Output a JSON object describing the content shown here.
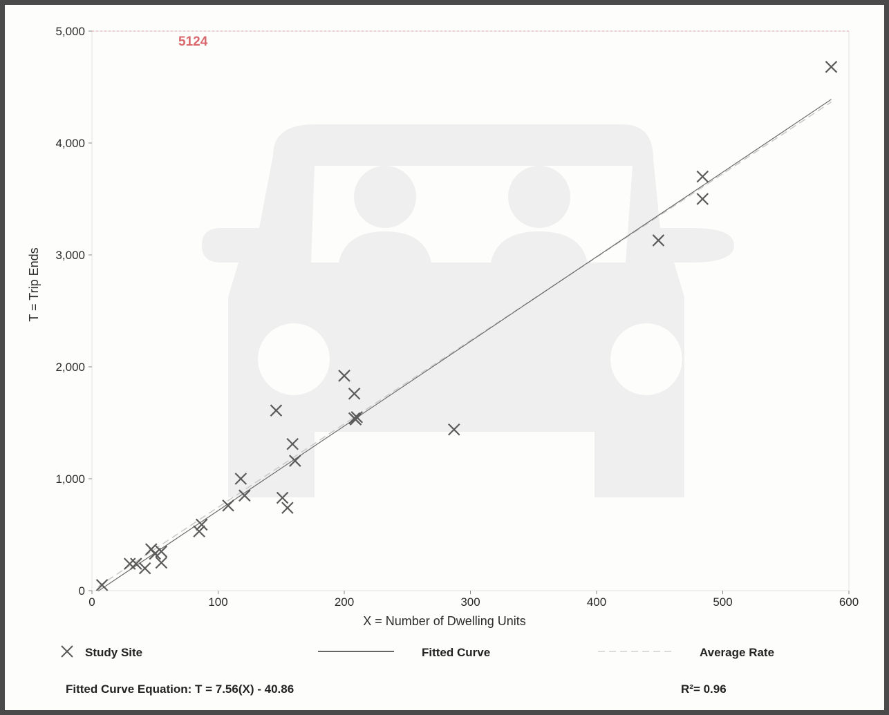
{
  "chart_data": {
    "type": "scatter",
    "xlabel": "X = Number of Dwelling Units",
    "ylabel": "T = Trip Ends",
    "xlim": [
      0,
      600
    ],
    "ylim": [
      0,
      5000
    ],
    "x_ticks": [
      0,
      100,
      200,
      300,
      400,
      500,
      600
    ],
    "y_ticks": [
      0,
      1000,
      2000,
      3000,
      4000,
      5000
    ],
    "x_tick_labels": [
      "0",
      "100",
      "200",
      "300",
      "400",
      "500",
      "600"
    ],
    "y_tick_labels": [
      "0",
      "1,000",
      "2,000",
      "3,000",
      "4,000",
      "5,000"
    ],
    "max_line": {
      "value": 5124,
      "label": "5124",
      "color": "#d9686e"
    },
    "series": [
      {
        "name": "Study Site",
        "marker": "x",
        "color": "#5a5a5a",
        "points": [
          [
            8,
            50
          ],
          [
            30,
            240
          ],
          [
            35,
            240
          ],
          [
            42,
            200
          ],
          [
            47,
            370
          ],
          [
            50,
            330
          ],
          [
            55,
            350
          ],
          [
            55,
            250
          ],
          [
            85,
            530
          ],
          [
            87,
            590
          ],
          [
            108,
            760
          ],
          [
            118,
            1000
          ],
          [
            121,
            850
          ],
          [
            146,
            1610
          ],
          [
            151,
            830
          ],
          [
            155,
            740
          ],
          [
            159,
            1310
          ],
          [
            161,
            1160
          ],
          [
            200,
            1920
          ],
          [
            208,
            1760
          ],
          [
            208,
            1540
          ],
          [
            209,
            1530
          ],
          [
            210,
            1550
          ],
          [
            287,
            1440
          ],
          [
            449,
            3130
          ],
          [
            484,
            3700
          ],
          [
            484,
            3500
          ],
          [
            586,
            4680
          ]
        ]
      },
      {
        "name": "Fitted Curve",
        "type": "line",
        "slope": 7.56,
        "intercept": -40.86,
        "x_range": [
          5,
          586
        ],
        "color": "#6a6a6a"
      },
      {
        "name": "Average Rate",
        "type": "line",
        "slope": 7.45,
        "intercept": 0,
        "x_range": [
          5,
          586
        ],
        "color": "#c8c8c8",
        "dash": true
      }
    ]
  },
  "legend": {
    "study_site": "Study Site",
    "fitted_curve": "Fitted Curve",
    "average_rate": "Average Rate"
  },
  "footer": {
    "equation": "Fitted Curve Equation: T = 7.56(X) - 40.86",
    "r_squared": "R²= 0.96"
  },
  "colors": {
    "frame": "#4a4a4a",
    "background": "#fdfdfc",
    "watermark": "#efefef",
    "grid_line": "#e2e2e2"
  }
}
